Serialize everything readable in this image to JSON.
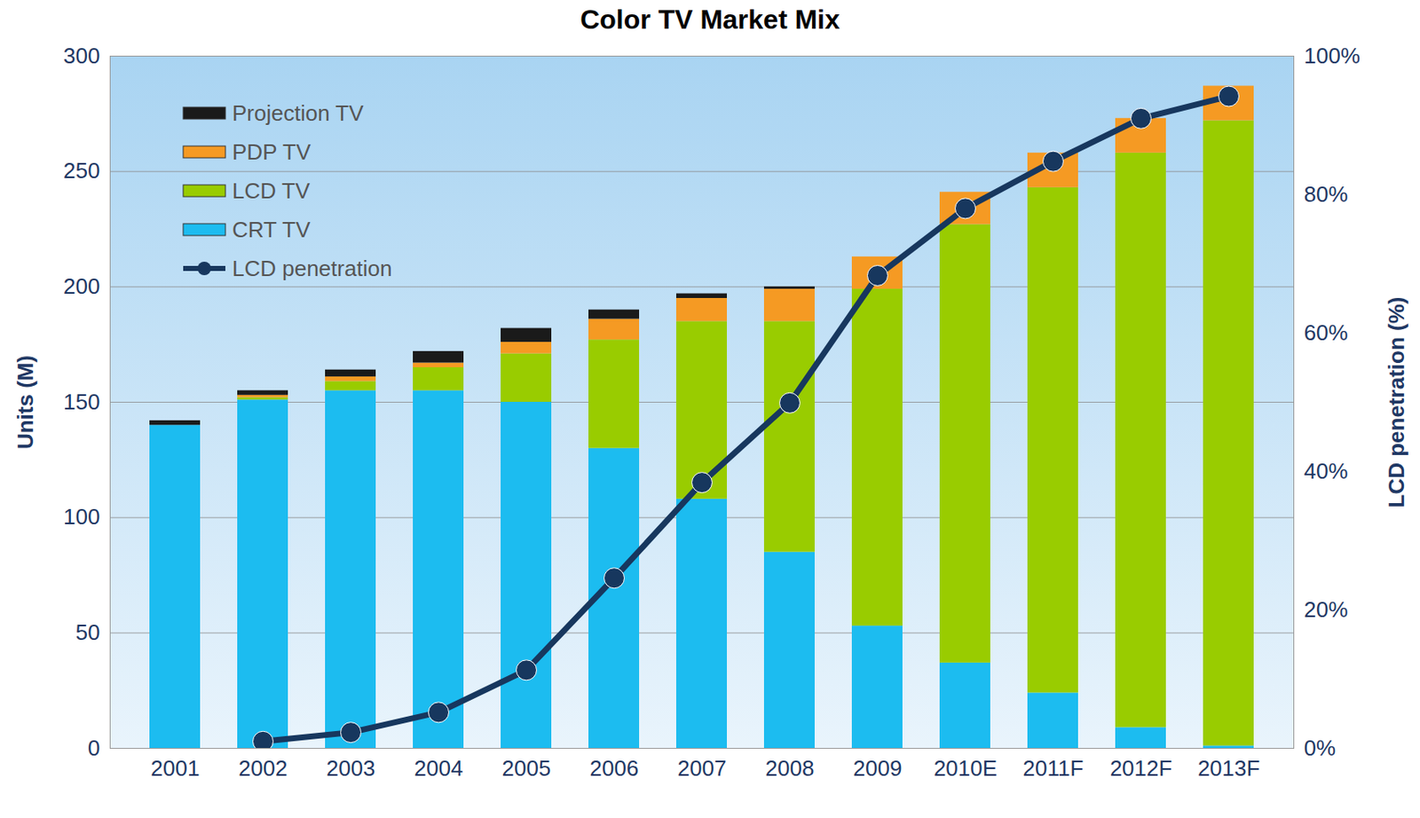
{
  "chart_data": {
    "type": "bar",
    "title": "Color TV Market Mix",
    "categories": [
      "2001",
      "2002",
      "2003",
      "2004",
      "2005",
      "2006",
      "2007",
      "2008",
      "2009",
      "2010E",
      "2011F",
      "2012F",
      "2013F"
    ],
    "ylabel": "Units (M)",
    "y2label": "LCD penetration (%)",
    "ylim": [
      0,
      300
    ],
    "yticks": [
      0,
      50,
      100,
      150,
      200,
      250,
      300
    ],
    "y2lim": [
      0,
      100
    ],
    "y2ticks": [
      {
        "value": 0,
        "label": "0%"
      },
      {
        "value": 20,
        "label": "20%"
      },
      {
        "value": 40,
        "label": "40%"
      },
      {
        "value": 60,
        "label": "60%"
      },
      {
        "value": 80,
        "label": "80%"
      },
      {
        "value": 100,
        "label": "100%"
      }
    ],
    "stacked": true,
    "grid": true,
    "legend": "upper left",
    "series": [
      {
        "name": "CRT TV",
        "color": "#1cbcf0",
        "values": [
          140,
          151,
          155,
          155,
          150,
          130,
          108,
          85,
          53,
          37,
          24,
          9,
          1
        ]
      },
      {
        "name": "LCD TV",
        "color": "#99cc00",
        "values": [
          0,
          1,
          4,
          10,
          21,
          47,
          77,
          100,
          146,
          190,
          219,
          249,
          271
        ]
      },
      {
        "name": "PDP TV",
        "color": "#f59a23",
        "values": [
          0,
          1,
          2,
          2,
          5,
          9,
          10,
          14,
          14,
          14,
          15,
          15,
          15
        ]
      },
      {
        "name": "Projection TV",
        "color": "#1a1a1a",
        "values": [
          2,
          2,
          3,
          5,
          6,
          4,
          2,
          1,
          0,
          0,
          0,
          0,
          0
        ]
      },
      {
        "name": "LCD penetration",
        "type": "line",
        "axis": "y2",
        "marker": "circle",
        "color": "#17375e",
        "values": [
          null,
          1,
          2.3,
          5.2,
          11.3,
          24.6,
          38.4,
          49.9,
          68.3,
          78,
          84.8,
          91,
          94.2
        ]
      }
    ]
  }
}
